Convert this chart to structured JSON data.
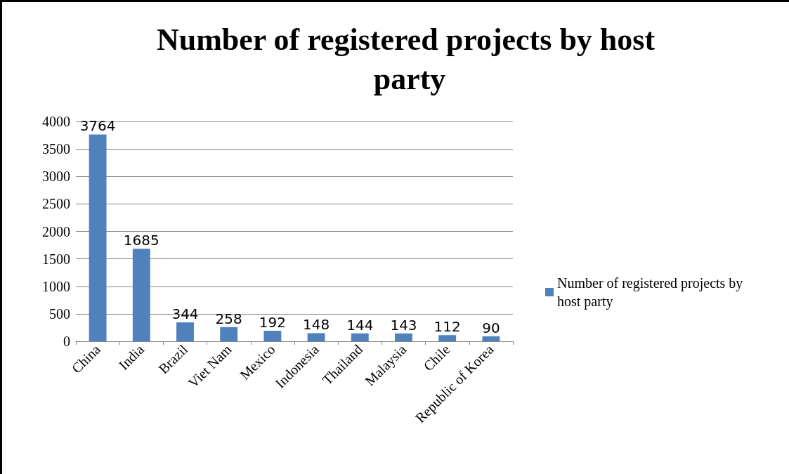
{
  "chart_data": {
    "type": "bar",
    "title": "Number of registered projects by host party",
    "categories": [
      "China",
      "India",
      "Brazil",
      "Viet Nam",
      "Mexico",
      "Indonesia",
      "Thailand",
      "Malaysia",
      "Chile",
      "Republic of Korea"
    ],
    "series": [
      {
        "name": "Number of registered projects by host party",
        "color": "#4f81bd",
        "values": [
          3764,
          1685,
          344,
          258,
          192,
          148,
          144,
          143,
          112,
          90
        ]
      }
    ],
    "ylim": [
      0,
      4000
    ],
    "yticks": [
      0,
      500,
      1000,
      1500,
      2000,
      2500,
      3000,
      3500,
      4000
    ],
    "grid": "y",
    "legend": "right",
    "data_labels": true
  }
}
